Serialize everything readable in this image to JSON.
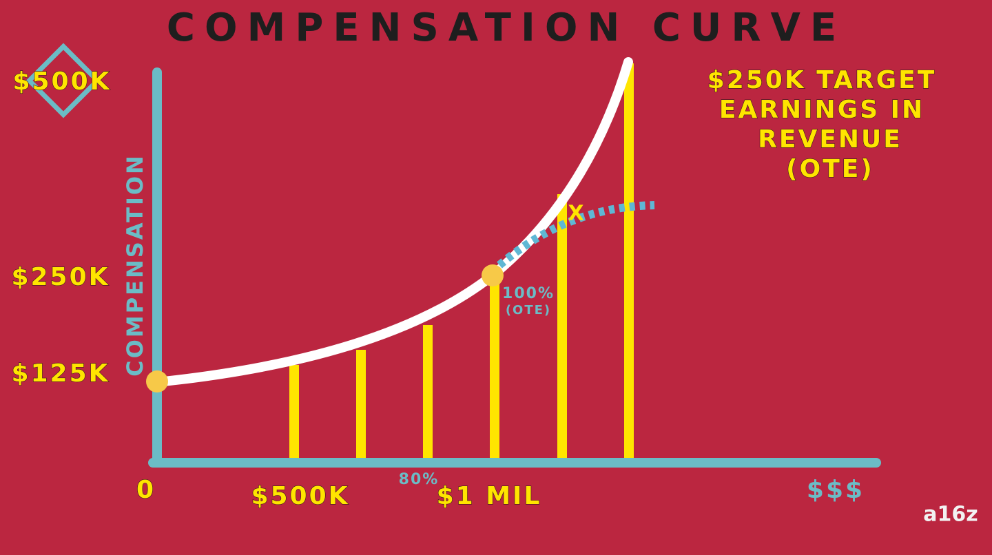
{
  "title": "COMPENSATION CURVE",
  "y_axis": {
    "label": "COMPENSATION",
    "labels": [
      "$500K",
      "$250K",
      "$125K"
    ]
  },
  "x_axis": {
    "labels": [
      "0",
      "$500K",
      "80%",
      "$1 MIL",
      "$$$"
    ]
  },
  "point_label": [
    "100%",
    "(OTE)"
  ],
  "marker": "X",
  "note": [
    "$250K TARGET",
    "EARNINGS IN",
    "REVENUE",
    "(OTE)"
  ],
  "logo": "a16z"
}
